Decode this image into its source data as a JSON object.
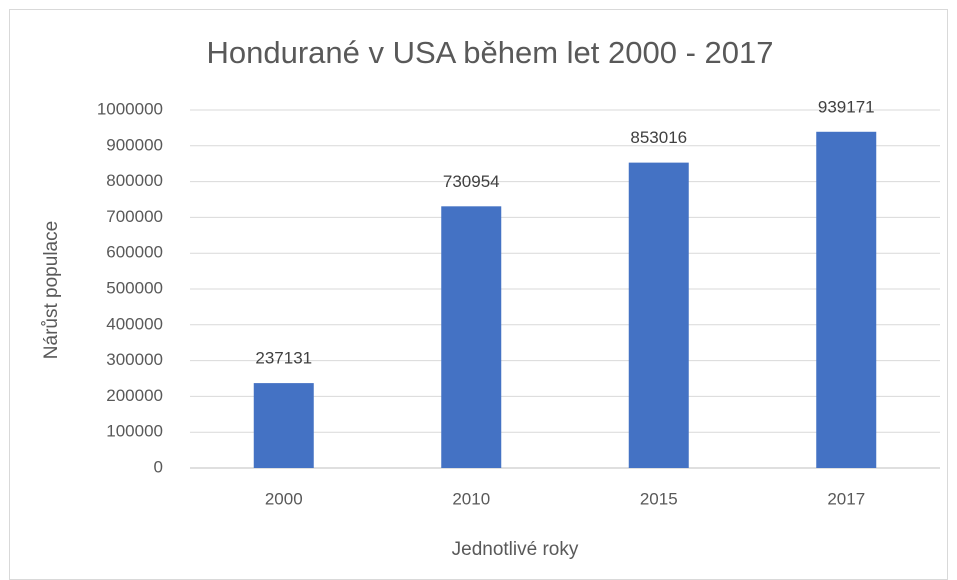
{
  "chart_data": {
    "type": "bar",
    "title": "Hondurané v USA během let 2000 - 2017",
    "x_label": "Jednotlivé roky",
    "y_label": "Nárůst populace",
    "categories": [
      "2000",
      "2010",
      "2015",
      "2017"
    ],
    "values": [
      237131,
      730954,
      853016,
      939171
    ],
    "color": "#4472c4",
    "ylim": [
      0,
      1000000
    ],
    "yticks": [
      0,
      100000,
      200000,
      300000,
      400000,
      500000,
      600000,
      700000,
      800000,
      900000,
      1000000
    ],
    "grid": true,
    "data_labels": true
  }
}
